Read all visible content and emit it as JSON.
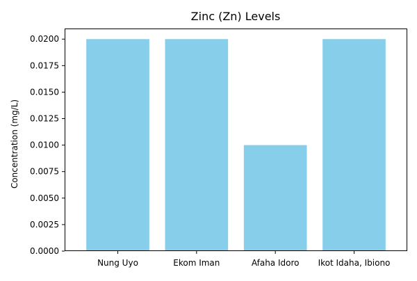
{
  "chart_data": {
    "type": "bar",
    "title": "Zinc (Zn) Levels",
    "xlabel": "",
    "ylabel": "Concentration (mg/L)",
    "categories": [
      "Nung Uyo",
      "Ekom Iman",
      "Afaha Idoro",
      "Ikot Idaha, Ibiono"
    ],
    "values": [
      0.02,
      0.02,
      0.01,
      0.02
    ],
    "ylim": [
      0,
      0.021
    ],
    "yticks": [
      0.0,
      0.0025,
      0.005,
      0.0075,
      0.01,
      0.0125,
      0.015,
      0.0175,
      0.02
    ],
    "ytick_labels": [
      "0.0000",
      "0.0025",
      "0.0050",
      "0.0075",
      "0.0100",
      "0.0125",
      "0.0150",
      "0.0175",
      "0.0200"
    ],
    "bar_color": "#87ceeb",
    "grid": false,
    "legend": "none"
  }
}
